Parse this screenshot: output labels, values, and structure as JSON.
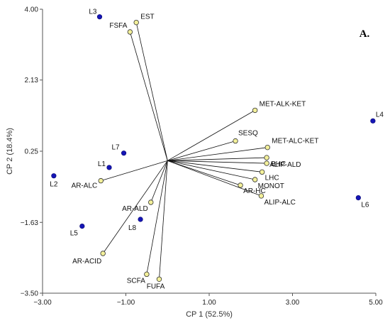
{
  "chart_data": {
    "type": "scatter",
    "title": "",
    "panel_label": "A.",
    "xlabel": "CP 1 (52.5%)",
    "ylabel": "CP 2 (18.4%)",
    "xlim": [
      -3.0,
      5.0
    ],
    "ylim": [
      -3.5,
      4.0
    ],
    "x_ticks": [
      {
        "value": -3.0,
        "label": "−3.00"
      },
      {
        "value": -1.0,
        "label": "−1.00"
      },
      {
        "value": 1.0,
        "label": "1.00"
      },
      {
        "value": 3.0,
        "label": "3.00"
      },
      {
        "value": 5.0,
        "label": "5.00"
      }
    ],
    "y_ticks": [
      {
        "value": 4.0,
        "label": "4.00"
      },
      {
        "value": 2.13,
        "label": "2.13"
      },
      {
        "value": 0.25,
        "label": "0.25"
      },
      {
        "value": -1.63,
        "label": "−1.63"
      },
      {
        "value": -3.5,
        "label": "−3.50"
      }
    ],
    "origin": [
      0.0,
      0.0
    ],
    "samples_color": "#1515b5",
    "variables_color": "#f3f09a",
    "samples": [
      {
        "name": "L3",
        "x": -1.63,
        "y": 3.8
      },
      {
        "name": "L7",
        "x": -1.05,
        "y": 0.2
      },
      {
        "name": "L1",
        "x": -1.4,
        "y": -0.18
      },
      {
        "name": "L2",
        "x": -2.73,
        "y": -0.4
      },
      {
        "name": "L5",
        "x": -2.05,
        "y": -1.73
      },
      {
        "name": "L8",
        "x": -0.65,
        "y": -1.55
      },
      {
        "name": "L4",
        "x": 4.93,
        "y": 1.05
      },
      {
        "name": "L6",
        "x": 4.58,
        "y": -0.98
      }
    ],
    "variables": [
      {
        "name": "EST",
        "x": -0.75,
        "y": 3.65
      },
      {
        "name": "FSFA",
        "x": -0.9,
        "y": 3.4
      },
      {
        "name": "MET-ALK-KET",
        "x": 2.1,
        "y": 1.33
      },
      {
        "name": "SESQ",
        "x": 1.63,
        "y": 0.52
      },
      {
        "name": "MET-ALC-KET",
        "x": 2.4,
        "y": 0.35
      },
      {
        "name": "ALIP-ALD",
        "x": 2.38,
        "y": 0.08
      },
      {
        "name": "BHC",
        "x": 2.38,
        "y": -0.07
      },
      {
        "name": "LHC",
        "x": 2.27,
        "y": -0.3
      },
      {
        "name": "MONOT",
        "x": 2.1,
        "y": -0.5
      },
      {
        "name": "AR-HC",
        "x": 1.75,
        "y": -0.65
      },
      {
        "name": "ALIP-ALC",
        "x": 2.25,
        "y": -0.93
      },
      {
        "name": "AR-ALC",
        "x": -1.6,
        "y": -0.53
      },
      {
        "name": "AR-ALD",
        "x": -0.4,
        "y": -1.1
      },
      {
        "name": "AR-ACID",
        "x": -1.55,
        "y": -2.45
      },
      {
        "name": "SCFA",
        "x": -0.5,
        "y": -3.0
      },
      {
        "name": "FUFA",
        "x": -0.2,
        "y": -3.13
      }
    ]
  }
}
